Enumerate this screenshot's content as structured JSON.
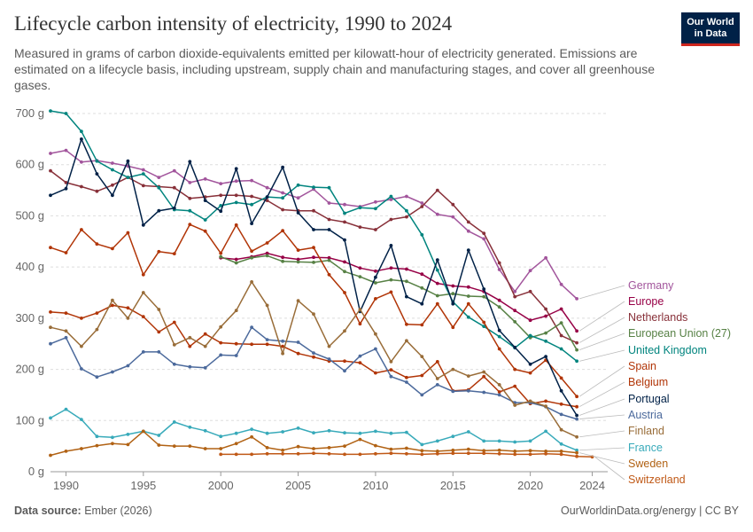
{
  "header": {
    "title": "Lifecycle carbon intensity of electricity, 1990 to 2024",
    "subtitle": "Measured in grams of carbon dioxide-equivalents emitted per kilowatt-hour of electricity generated. Emissions are estimated on a lifecycle basis, including upstream, supply chain and manufacturing stages, and cover all greenhouse gases.",
    "logo_line1": "Our World",
    "logo_line2": "in Data"
  },
  "footer": {
    "source_label": "Data source:",
    "source_value": "Ember (2026)",
    "url": "OurWorldinData.org/energy | CC BY"
  },
  "colors": {
    "text": "#333333",
    "muted": "#5b5b5b",
    "grid": "#dddddd",
    "brand": "#002147",
    "brand_accent": "#ce261e"
  },
  "chart_data": {
    "type": "line",
    "title": "Lifecycle carbon intensity of electricity, 1990 to 2024",
    "xlabel": "",
    "ylabel": "",
    "xlim": [
      1989,
      2025
    ],
    "ylim": [
      0,
      700
    ],
    "y_ticks": [
      0,
      100,
      200,
      300,
      400,
      500,
      600,
      700
    ],
    "y_tick_labels": [
      "0 g",
      "100 g",
      "200 g",
      "300 g",
      "400 g",
      "500 g",
      "600 g",
      "700 g"
    ],
    "x_ticks": [
      1990,
      1995,
      2000,
      2005,
      2010,
      2015,
      2020,
      2024
    ],
    "x_tick_labels": [
      "1990",
      "1995",
      "2000",
      "2005",
      "2010",
      "2015",
      "2020",
      "2024"
    ],
    "grid": true,
    "legend": "right, labels at line ends",
    "series": [
      {
        "name": "Germany",
        "color": "#a2559c",
        "start": 1989,
        "values": [
          622,
          628,
          605,
          608,
          603,
          597,
          590,
          575,
          588,
          565,
          572,
          563,
          568,
          569,
          555,
          545,
          535,
          552,
          525,
          522,
          518,
          527,
          532,
          538,
          525,
          503,
          498,
          470,
          455,
          395,
          352,
          393,
          418,
          366,
          338
        ]
      },
      {
        "name": "Europe",
        "color": "#970046",
        "start": 2000,
        "values": [
          418,
          415,
          420,
          427,
          419,
          415,
          419,
          418,
          410,
          398,
          392,
          398,
          396,
          386,
          368,
          363,
          361,
          352,
          335,
          315,
          296,
          304,
          318,
          275
        ]
      },
      {
        "name": "Netherlands",
        "color": "#883039",
        "start": 1989,
        "values": [
          588,
          565,
          557,
          548,
          560,
          575,
          559,
          557,
          555,
          534,
          537,
          540,
          540,
          538,
          530,
          512,
          510,
          510,
          493,
          488,
          478,
          473,
          493,
          498,
          518,
          550,
          522,
          488,
          466,
          408,
          342,
          352,
          318,
          266,
          252
        ]
      },
      {
        "name": "European Union (27)",
        "color": "#578145",
        "start": 2000,
        "values": [
          420,
          408,
          418,
          422,
          411,
          410,
          409,
          413,
          391,
          381,
          369,
          375,
          372,
          359,
          344,
          348,
          343,
          342,
          322,
          293,
          262,
          271,
          291,
          238
        ]
      },
      {
        "name": "United Kingdom",
        "color": "#00847e",
        "start": 1989,
        "values": [
          705,
          700,
          665,
          607,
          590,
          575,
          582,
          555,
          512,
          510,
          492,
          520,
          526,
          522,
          537,
          535,
          560,
          556,
          555,
          505,
          516,
          514,
          538,
          510,
          463,
          394,
          332,
          302,
          284,
          264,
          242,
          266,
          255,
          240,
          216
        ]
      },
      {
        "name": "Spain",
        "color": "#b13507",
        "start": 1989,
        "values": [
          438,
          428,
          473,
          445,
          436,
          467,
          385,
          430,
          426,
          483,
          470,
          427,
          482,
          431,
          447,
          471,
          433,
          438,
          385,
          350,
          289,
          338,
          351,
          288,
          287,
          328,
          282,
          328,
          292,
          240,
          200,
          193,
          218,
          183,
          147
        ]
      },
      {
        "name": "Belgium",
        "color": "#b13507",
        "start": 1989,
        "values": [
          312,
          310,
          300,
          310,
          325,
          320,
          303,
          273,
          292,
          245,
          269,
          252,
          250,
          249,
          249,
          245,
          231,
          224,
          216,
          216,
          213,
          193,
          199,
          184,
          188,
          215,
          158,
          160,
          186,
          156,
          167,
          133,
          138,
          132,
          127
        ]
      },
      {
        "name": "Portugal",
        "color": "#002147",
        "start": 1989,
        "values": [
          540,
          553,
          650,
          582,
          540,
          607,
          482,
          510,
          515,
          606,
          530,
          509,
          592,
          485,
          537,
          595,
          506,
          473,
          473,
          453,
          313,
          380,
          442,
          342,
          328,
          414,
          328,
          433,
          357,
          276,
          243,
          210,
          225,
          158,
          110
        ]
      },
      {
        "name": "Austria",
        "color": "#4c6a9c",
        "start": 1989,
        "values": [
          250,
          262,
          201,
          185,
          195,
          207,
          234,
          234,
          210,
          205,
          203,
          228,
          227,
          282,
          258,
          255,
          253,
          232,
          220,
          197,
          226,
          240,
          186,
          175,
          150,
          170,
          157,
          158,
          155,
          150,
          135,
          135,
          127,
          112,
          103
        ]
      },
      {
        "name": "Finland",
        "color": "#996d39",
        "start": 1989,
        "values": [
          282,
          275,
          245,
          278,
          335,
          300,
          350,
          317,
          248,
          262,
          245,
          283,
          315,
          371,
          325,
          231,
          334,
          308,
          245,
          275,
          317,
          269,
          215,
          256,
          225,
          182,
          200,
          187,
          195,
          170,
          130,
          138,
          128,
          82,
          68
        ]
      },
      {
        "name": "France",
        "color": "#38aaba",
        "start": 1989,
        "values": [
          105,
          122,
          102,
          69,
          67,
          73,
          79,
          71,
          97,
          87,
          80,
          69,
          75,
          83,
          75,
          78,
          85,
          76,
          80,
          76,
          75,
          79,
          75,
          77,
          53,
          60,
          69,
          78,
          60,
          60,
          58,
          60,
          79,
          54,
          42
        ]
      },
      {
        "name": "Sweden",
        "color": "#b16214",
        "start": 1989,
        "values": [
          32,
          40,
          45,
          51,
          55,
          53,
          79,
          52,
          50,
          50,
          45,
          45,
          55,
          68,
          47,
          42,
          49,
          45,
          47,
          50,
          63,
          51,
          44,
          46,
          41,
          40,
          42,
          44,
          41,
          42,
          40,
          41,
          40,
          40,
          37
        ]
      },
      {
        "name": "Switzerland",
        "color": "#c05917",
        "start": 2000,
        "values": [
          34,
          34,
          34,
          35,
          35,
          35,
          36,
          35,
          34,
          34,
          35,
          36,
          35,
          34,
          35,
          36,
          36,
          36,
          35,
          34,
          34,
          35,
          34,
          30,
          29
        ]
      }
    ]
  }
}
